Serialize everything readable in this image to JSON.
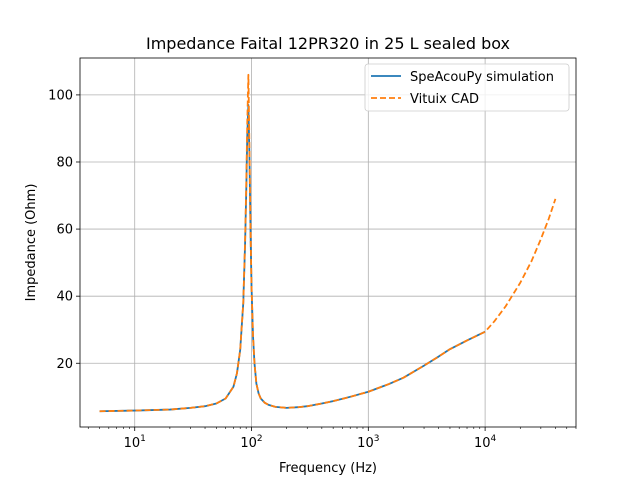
{
  "chart_data": {
    "type": "line",
    "title": "Impedance Faital 12PR320 in 25 L sealed box",
    "xlabel": "Frequency (Hz)",
    "ylabel": "Impedance (Ohm)",
    "xscale": "log",
    "xlim": [
      3.4,
      60000
    ],
    "ylim": [
      1,
      111
    ],
    "x_ticks": [
      {
        "value": 10,
        "base": "10",
        "exp": "1"
      },
      {
        "value": 100,
        "base": "10",
        "exp": "2"
      },
      {
        "value": 1000,
        "base": "10",
        "exp": "3"
      },
      {
        "value": 10000,
        "base": "10",
        "exp": "4"
      }
    ],
    "y_ticks": [
      20,
      40,
      60,
      80,
      100
    ],
    "grid": true,
    "legend_position": "top-right",
    "series": [
      {
        "name": "SpeAcouPy simulation",
        "color": "#1f77b4",
        "style": "solid",
        "x": [
          5,
          10,
          20,
          30,
          40,
          50,
          60,
          70,
          75,
          80,
          85,
          88,
          90,
          92,
          94,
          96,
          98,
          100,
          103,
          106,
          110,
          115,
          120,
          130,
          140,
          160,
          200,
          250,
          300,
          400,
          500,
          700,
          1000,
          1500,
          2000,
          3000,
          4000,
          5000,
          7000,
          10000
        ],
        "y": [
          5.7,
          5.9,
          6.2,
          6.7,
          7.2,
          8.0,
          9.5,
          13,
          17,
          24,
          38,
          55,
          70,
          88,
          97,
          82,
          60,
          43,
          28,
          20,
          14,
          11,
          9.5,
          8.2,
          7.6,
          7.0,
          6.7,
          6.9,
          7.2,
          8.0,
          8.7,
          10.0,
          11.5,
          13.8,
          15.7,
          19.3,
          22.0,
          24.2,
          26.8,
          29.4
        ]
      },
      {
        "name": "Vituix CAD",
        "color": "#ff7f0e",
        "style": "dashed",
        "x": [
          5,
          10,
          20,
          30,
          40,
          50,
          60,
          70,
          75,
          80,
          85,
          88,
          90,
          92,
          94,
          96,
          98,
          100,
          103,
          106,
          110,
          115,
          120,
          130,
          140,
          160,
          200,
          250,
          300,
          400,
          500,
          700,
          1000,
          1500,
          2000,
          3000,
          4000,
          5000,
          7000,
          10000,
          12000,
          15000,
          20000,
          25000,
          30000,
          35000,
          40000
        ],
        "y": [
          5.7,
          5.9,
          6.2,
          6.7,
          7.2,
          8.0,
          9.5,
          13,
          17,
          24,
          38,
          56,
          72,
          92,
          106,
          84,
          60,
          43,
          28,
          20,
          14,
          11,
          9.5,
          8.2,
          7.6,
          7.0,
          6.7,
          6.9,
          7.2,
          8.0,
          8.7,
          10.0,
          11.5,
          13.8,
          15.7,
          19.3,
          22.0,
          24.2,
          26.8,
          29.4,
          32.5,
          37.0,
          44.0,
          50.5,
          57.0,
          63.0,
          69.0
        ]
      }
    ]
  }
}
